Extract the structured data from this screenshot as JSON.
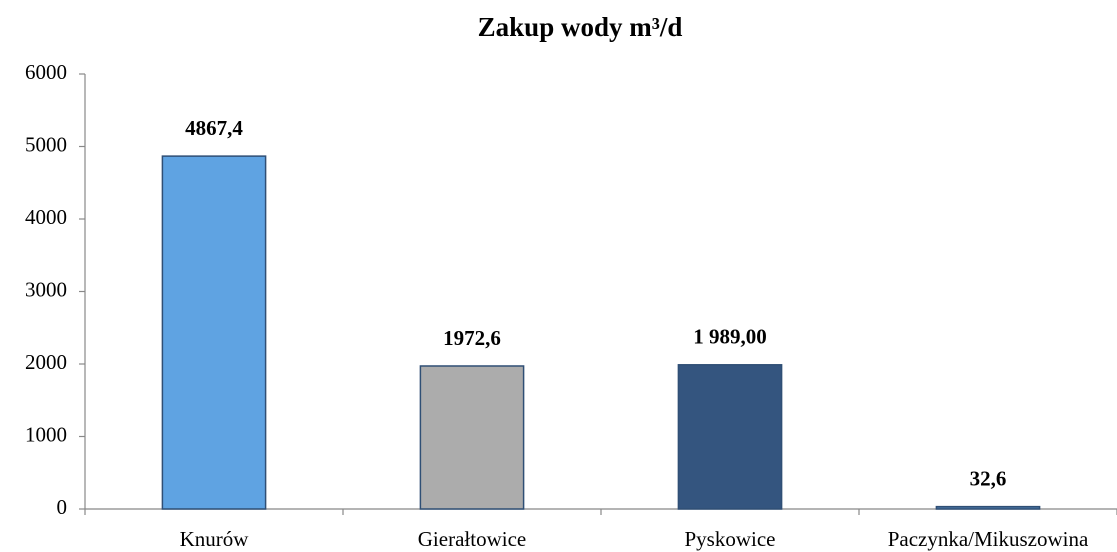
{
  "chart_data": {
    "type": "bar",
    "title": "Zakup wody m³/d",
    "categories": [
      "Knurów",
      "Gierałtowice",
      "Pyskowice",
      "Paczynka/Mikuszowina"
    ],
    "values": [
      4867.4,
      1972.6,
      1989,
      32.6
    ],
    "value_labels": [
      "4867,4",
      "1972,6",
      "1 989,00",
      "32,6"
    ],
    "colors": [
      "#5fa3e2",
      "#acacac",
      "#34557f",
      "#4a78a8"
    ],
    "ylim": [
      0,
      6000
    ],
    "yticks": [
      0,
      1000,
      2000,
      3000,
      4000,
      5000,
      6000
    ]
  }
}
